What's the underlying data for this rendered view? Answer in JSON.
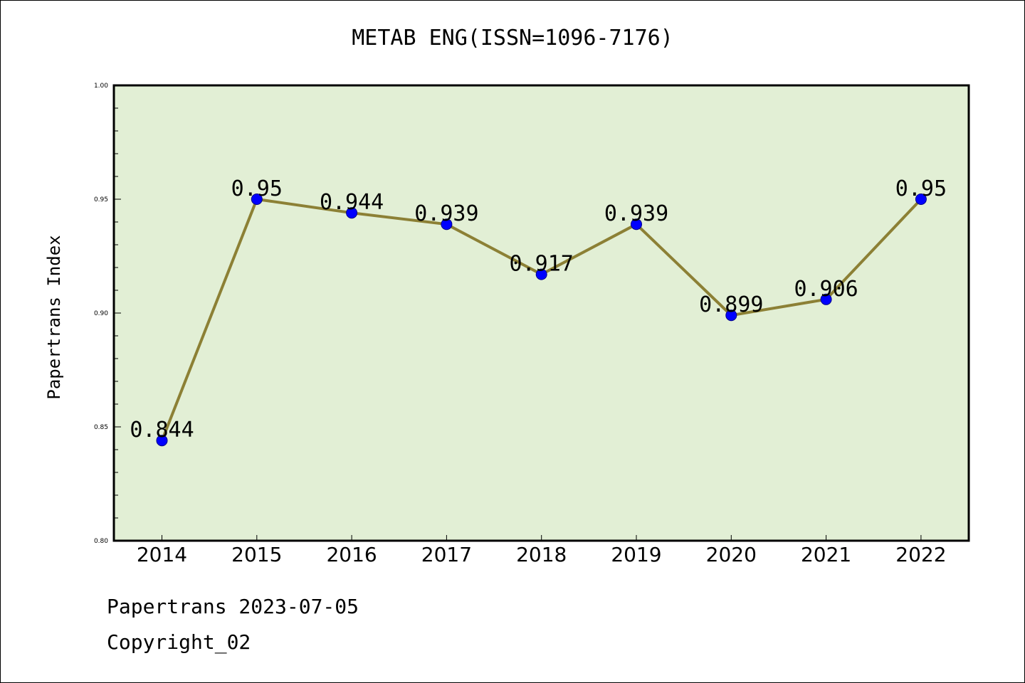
{
  "chart_data": {
    "type": "line",
    "title": "METAB ENG(ISSN=1096-7176)",
    "xlabel": "",
    "ylabel": "Papertrans Index",
    "categories": [
      "2014",
      "2015",
      "2016",
      "2017",
      "2018",
      "2019",
      "2020",
      "2021",
      "2022"
    ],
    "series": [
      {
        "values": [
          0.844,
          0.95,
          0.944,
          0.939,
          0.917,
          0.939,
          0.899,
          0.906,
          0.95
        ],
        "data_labels": [
          "0.844",
          "0.95",
          "0.944",
          "0.939",
          "0.917",
          "0.939",
          "0.899",
          "0.906",
          "0.95"
        ]
      }
    ],
    "ylim": [
      0.8,
      1.0
    ],
    "y_ticks": [
      "0.80",
      "0.85",
      "0.90",
      "0.95",
      "1.00"
    ],
    "grid": false,
    "colors": {
      "plot_background": "#e2efd5",
      "line": "#8c8035",
      "marker": "#0000ff"
    }
  },
  "footer": {
    "line1": "Papertrans 2023-07-05",
    "line2": "Copyright_02"
  }
}
